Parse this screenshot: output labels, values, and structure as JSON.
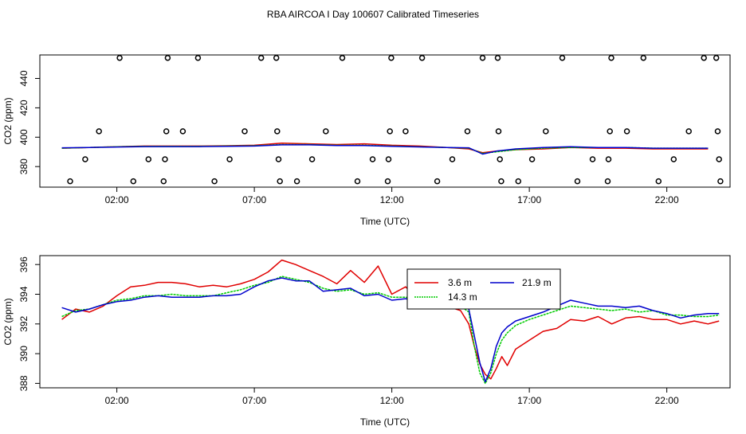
{
  "title": "RBA AIRCOA I  Day 100607  Calibrated Timeseries",
  "colors": {
    "red": "#e00000",
    "green": "#00cc00",
    "blue": "#0000cc",
    "black": "#000000"
  },
  "chart_data": [
    {
      "type": "scatter",
      "name": "top-panel",
      "xlabel": "Time (UTC)",
      "ylabel": "CO2 (ppm)",
      "xlim": [
        -0.8,
        24.3
      ],
      "ylim": [
        366,
        456
      ],
      "x_ticks": [
        2,
        7,
        12,
        17,
        22
      ],
      "x_tick_labels": [
        "02:00",
        "07:00",
        "12:00",
        "17:00",
        "22:00"
      ],
      "y_ticks": [
        380,
        400,
        420,
        440
      ],
      "y_tick_labels": [
        "380",
        "400",
        "420",
        "440"
      ],
      "points": [
        {
          "x": 0.3,
          "y": 370
        },
        {
          "x": 0.85,
          "y": 385
        },
        {
          "x": 1.35,
          "y": 404
        },
        {
          "x": 2.1,
          "y": 454
        },
        {
          "x": 2.6,
          "y": 370
        },
        {
          "x": 3.15,
          "y": 385
        },
        {
          "x": 3.7,
          "y": 370
        },
        {
          "x": 3.75,
          "y": 385
        },
        {
          "x": 3.8,
          "y": 404
        },
        {
          "x": 3.85,
          "y": 454
        },
        {
          "x": 4.4,
          "y": 404
        },
        {
          "x": 4.95,
          "y": 454
        },
        {
          "x": 5.55,
          "y": 370
        },
        {
          "x": 6.1,
          "y": 385
        },
        {
          "x": 6.65,
          "y": 404
        },
        {
          "x": 7.25,
          "y": 454
        },
        {
          "x": 7.8,
          "y": 454
        },
        {
          "x": 7.83,
          "y": 404
        },
        {
          "x": 7.88,
          "y": 385
        },
        {
          "x": 7.93,
          "y": 370
        },
        {
          "x": 8.55,
          "y": 370
        },
        {
          "x": 9.1,
          "y": 385
        },
        {
          "x": 9.6,
          "y": 404
        },
        {
          "x": 10.2,
          "y": 454
        },
        {
          "x": 10.75,
          "y": 370
        },
        {
          "x": 11.3,
          "y": 385
        },
        {
          "x": 11.85,
          "y": 370
        },
        {
          "x": 11.88,
          "y": 385
        },
        {
          "x": 11.93,
          "y": 404
        },
        {
          "x": 11.98,
          "y": 454
        },
        {
          "x": 12.5,
          "y": 404
        },
        {
          "x": 13.1,
          "y": 454
        },
        {
          "x": 13.65,
          "y": 370
        },
        {
          "x": 14.2,
          "y": 385
        },
        {
          "x": 14.75,
          "y": 404
        },
        {
          "x": 15.3,
          "y": 454
        },
        {
          "x": 15.85,
          "y": 454
        },
        {
          "x": 15.88,
          "y": 404
        },
        {
          "x": 15.93,
          "y": 385
        },
        {
          "x": 15.98,
          "y": 370
        },
        {
          "x": 16.6,
          "y": 370
        },
        {
          "x": 17.1,
          "y": 385
        },
        {
          "x": 17.6,
          "y": 404
        },
        {
          "x": 18.2,
          "y": 454
        },
        {
          "x": 18.75,
          "y": 370
        },
        {
          "x": 19.3,
          "y": 385
        },
        {
          "x": 19.85,
          "y": 370
        },
        {
          "x": 19.88,
          "y": 385
        },
        {
          "x": 19.93,
          "y": 404
        },
        {
          "x": 19.98,
          "y": 454
        },
        {
          "x": 20.55,
          "y": 404
        },
        {
          "x": 21.15,
          "y": 454
        },
        {
          "x": 21.7,
          "y": 370
        },
        {
          "x": 22.25,
          "y": 385
        },
        {
          "x": 22.8,
          "y": 404
        },
        {
          "x": 23.35,
          "y": 454
        },
        {
          "x": 23.8,
          "y": 454
        },
        {
          "x": 23.85,
          "y": 404
        },
        {
          "x": 23.9,
          "y": 385
        },
        {
          "x": 23.95,
          "y": 370
        }
      ],
      "series": [
        {
          "name": "3.6 m",
          "color": "#e00000",
          "x": [
            0,
            1,
            2,
            3,
            4,
            5,
            6,
            7,
            8,
            9,
            10,
            11,
            12,
            13,
            14,
            14.8,
            15.3,
            15.8,
            16.5,
            17.5,
            18.5,
            19.5,
            20.5,
            21.5,
            22.5,
            23.5
          ],
          "y": [
            392.5,
            393,
            393.5,
            394,
            394,
            394,
            394.2,
            394.5,
            396,
            395.5,
            395,
            395.5,
            394.5,
            394,
            393,
            392,
            389.5,
            390.5,
            391.5,
            392,
            393,
            392.5,
            392.5,
            392,
            392,
            392
          ]
        },
        {
          "name": "14.3 m",
          "color": "#00cc00",
          "x": [
            0,
            1,
            2,
            3,
            4,
            5,
            6,
            7,
            8,
            9,
            10,
            11,
            12,
            13,
            14,
            14.8,
            15.3,
            15.8,
            16.5,
            17.5,
            18.5,
            19.5,
            20.5,
            21.5,
            22.5,
            23.5
          ],
          "y": [
            392.5,
            393,
            393.5,
            393.8,
            393.8,
            393.8,
            394,
            394.2,
            395,
            395,
            394.5,
            394.5,
            394,
            393.5,
            393,
            392.5,
            389,
            390,
            391.5,
            392.5,
            393,
            393,
            393,
            392.5,
            392.5,
            392.5
          ]
        },
        {
          "name": "21.9 m",
          "color": "#0000cc",
          "x": [
            0,
            1,
            2,
            3,
            4,
            5,
            6,
            7,
            8,
            9,
            10,
            11,
            12,
            13,
            14,
            14.8,
            15.3,
            15.8,
            16.5,
            17.5,
            18.5,
            19.5,
            20.5,
            21.5,
            22.5,
            23.5
          ],
          "y": [
            392.8,
            393,
            393.3,
            393.6,
            393.6,
            393.6,
            393.8,
            394,
            394.8,
            394.8,
            394.3,
            394.3,
            393.8,
            393.4,
            393,
            392.8,
            388.5,
            390.5,
            392,
            393,
            393.5,
            393,
            393,
            392.5,
            392.5,
            392.5
          ]
        }
      ]
    },
    {
      "type": "line",
      "name": "bottom-panel",
      "xlabel": "Time (UTC)",
      "ylabel": "CO2 (ppm)",
      "xlim": [
        -0.8,
        24.3
      ],
      "ylim": [
        387.7,
        396.6
      ],
      "x_ticks": [
        2,
        7,
        12,
        17,
        22
      ],
      "x_tick_labels": [
        "02:00",
        "07:00",
        "12:00",
        "17:00",
        "22:00"
      ],
      "y_ticks": [
        388,
        390,
        392,
        394,
        396
      ],
      "y_tick_labels": [
        "388",
        "390",
        "392",
        "394",
        "396"
      ],
      "legend": {
        "position": "top-center",
        "entries": [
          "3.6 m",
          "21.9 m",
          "14.3 m"
        ]
      },
      "series": [
        {
          "name": "3.6 m",
          "color": "#e00000",
          "x": [
            0,
            0.5,
            1,
            1.5,
            2,
            2.5,
            3,
            3.5,
            4,
            4.5,
            5,
            5.5,
            6,
            6.5,
            7,
            7.5,
            8,
            8.5,
            9,
            9.5,
            10,
            10.5,
            11,
            11.5,
            12,
            12.5,
            13,
            13.5,
            14,
            14.5,
            14.8,
            15.0,
            15.2,
            15.4,
            15.6,
            15.8,
            16.0,
            16.2,
            16.5,
            17,
            17.5,
            18,
            18.5,
            19,
            19.5,
            20,
            20.5,
            21,
            21.5,
            22,
            22.5,
            23,
            23.5,
            23.9
          ],
          "y": [
            392.3,
            393.0,
            392.8,
            393.2,
            393.9,
            394.5,
            394.6,
            394.8,
            394.8,
            394.7,
            394.5,
            394.6,
            394.5,
            394.7,
            395.0,
            395.5,
            396.3,
            396.0,
            395.6,
            395.2,
            394.7,
            395.6,
            394.8,
            395.9,
            394.0,
            394.5,
            393.6,
            394.1,
            393.2,
            392.9,
            392.0,
            390.5,
            389.3,
            388.6,
            388.3,
            389.0,
            389.8,
            389.2,
            390.3,
            390.9,
            391.5,
            391.7,
            392.3,
            392.2,
            392.5,
            392.0,
            392.4,
            392.5,
            392.3,
            392.3,
            392.0,
            392.2,
            392.0,
            392.2
          ]
        },
        {
          "name": "14.3 m",
          "color": "#00cc00",
          "x": [
            0,
            0.5,
            1,
            1.5,
            2,
            2.5,
            3,
            3.5,
            4,
            4.5,
            5,
            5.5,
            6,
            6.5,
            7,
            7.5,
            8,
            8.5,
            9,
            9.5,
            10,
            10.5,
            11,
            11.5,
            12,
            12.5,
            13,
            13.5,
            14,
            14.5,
            14.8,
            15.0,
            15.2,
            15.4,
            15.6,
            15.8,
            16.0,
            16.2,
            16.5,
            17,
            17.5,
            18,
            18.5,
            19,
            19.5,
            20,
            20.5,
            21,
            21.5,
            22,
            22.5,
            23,
            23.5,
            23.9
          ],
          "y": [
            392.5,
            392.9,
            393.0,
            393.3,
            393.6,
            393.7,
            393.9,
            393.9,
            394.0,
            393.9,
            393.9,
            393.9,
            394.1,
            394.3,
            394.6,
            394.8,
            395.2,
            395.0,
            394.8,
            394.4,
            394.2,
            394.3,
            394.0,
            394.1,
            393.8,
            393.8,
            393.6,
            393.5,
            393.4,
            393.2,
            392.8,
            390.5,
            388.7,
            388.0,
            388.7,
            390.0,
            390.9,
            391.4,
            391.9,
            392.3,
            392.6,
            392.9,
            393.2,
            393.1,
            393.0,
            392.9,
            393.0,
            392.8,
            392.9,
            392.6,
            392.6,
            392.5,
            392.5,
            392.6
          ]
        },
        {
          "name": "21.9 m",
          "color": "#0000cc",
          "x": [
            0,
            0.5,
            1,
            1.5,
            2,
            2.5,
            3,
            3.5,
            4,
            4.5,
            5,
            5.5,
            6,
            6.5,
            7,
            7.5,
            8,
            8.5,
            9,
            9.5,
            10,
            10.5,
            11,
            11.5,
            12,
            12.5,
            13,
            13.5,
            14,
            14.5,
            14.8,
            15.0,
            15.2,
            15.4,
            15.6,
            15.8,
            16.0,
            16.2,
            16.5,
            17,
            17.5,
            18,
            18.5,
            19,
            19.5,
            20,
            20.5,
            21,
            21.5,
            22,
            22.5,
            23,
            23.5,
            23.9
          ],
          "y": [
            393.1,
            392.8,
            393.0,
            393.3,
            393.5,
            393.6,
            393.8,
            393.9,
            393.8,
            393.8,
            393.8,
            393.9,
            393.9,
            394.0,
            394.5,
            394.9,
            395.1,
            394.9,
            394.9,
            394.2,
            394.3,
            394.4,
            393.9,
            394.0,
            393.6,
            393.7,
            393.5,
            393.5,
            393.3,
            393.3,
            393.0,
            391.2,
            389.4,
            388.1,
            389.0,
            390.5,
            391.4,
            391.8,
            392.2,
            392.5,
            392.8,
            393.2,
            393.6,
            393.4,
            393.2,
            393.2,
            393.1,
            393.2,
            392.9,
            392.7,
            392.4,
            392.6,
            392.7,
            392.7
          ]
        }
      ]
    }
  ]
}
